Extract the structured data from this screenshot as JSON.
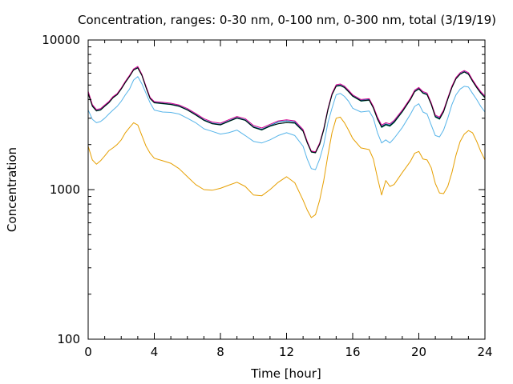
{
  "chart_data": {
    "type": "line",
    "title": "Concentration, ranges: 0-30 nm, 0-100 nm, 0-300 nm, total (3/19/19)",
    "xlabel": "Time [hour]",
    "ylabel": "Concentration",
    "xlim": [
      0,
      24
    ],
    "ylim": [
      100,
      10000
    ],
    "yscale": "log",
    "grid": false,
    "legend": "none",
    "xticks": [
      0,
      4,
      8,
      12,
      16,
      20,
      24
    ],
    "xtick_labels": [
      "0",
      "4",
      "8",
      "12",
      "16",
      "20",
      "24"
    ],
    "yticks": [
      100,
      1000,
      10000
    ],
    "ytick_labels": [
      "100",
      "1000",
      "10000"
    ],
    "x": [
      0,
      0.25,
      0.5,
      0.75,
      1,
      1.25,
      1.5,
      1.75,
      2,
      2.25,
      2.5,
      2.75,
      3,
      3.25,
      3.5,
      3.75,
      4,
      4.5,
      5,
      5.5,
      6,
      6.5,
      7,
      7.5,
      8,
      8.5,
      9,
      9.5,
      10,
      10.5,
      11,
      11.5,
      12,
      12.5,
      13,
      13.25,
      13.5,
      13.75,
      14,
      14.25,
      14.5,
      14.75,
      15,
      15.25,
      15.5,
      15.75,
      16,
      16.5,
      17,
      17.25,
      17.5,
      17.75,
      18,
      18.25,
      18.5,
      19,
      19.5,
      19.75,
      20,
      20.25,
      20.5,
      20.75,
      21,
      21.25,
      21.5,
      21.75,
      22,
      22.25,
      22.5,
      22.75,
      23,
      23.25,
      23.5,
      23.75,
      24
    ],
    "series": [
      {
        "color": "#e69f00",
        "values": [
          1950,
          1580,
          1480,
          1560,
          1680,
          1820,
          1900,
          2000,
          2150,
          2400,
          2600,
          2800,
          2700,
          2300,
          1950,
          1750,
          1620,
          1560,
          1500,
          1380,
          1220,
          1080,
          1000,
          990,
          1020,
          1070,
          1120,
          1050,
          920,
          910,
          1000,
          1120,
          1220,
          1110,
          850,
          730,
          650,
          680,
          850,
          1150,
          1700,
          2400,
          3000,
          3050,
          2800,
          2500,
          2200,
          1900,
          1850,
          1600,
          1200,
          920,
          1150,
          1050,
          1080,
          1300,
          1550,
          1750,
          1800,
          1600,
          1580,
          1400,
          1100,
          950,
          940,
          1050,
          1300,
          1700,
          2100,
          2350,
          2480,
          2400,
          2100,
          1800,
          1580
        ]
      },
      {
        "color": "#56b4e9",
        "values": [
          3400,
          2950,
          2800,
          2850,
          3000,
          3200,
          3400,
          3600,
          3900,
          4300,
          4700,
          5400,
          5700,
          5100,
          4400,
          3800,
          3400,
          3300,
          3280,
          3200,
          3000,
          2800,
          2550,
          2450,
          2350,
          2400,
          2500,
          2300,
          2100,
          2050,
          2150,
          2300,
          2400,
          2300,
          1950,
          1600,
          1380,
          1360,
          1600,
          2000,
          2800,
          3500,
          4300,
          4400,
          4200,
          3900,
          3500,
          3300,
          3350,
          3000,
          2400,
          2050,
          2150,
          2050,
          2200,
          2600,
          3200,
          3600,
          3750,
          3300,
          3200,
          2700,
          2300,
          2250,
          2500,
          3000,
          3700,
          4300,
          4700,
          4900,
          4850,
          4400,
          4000,
          3600,
          3300
        ]
      },
      {
        "color": "#009e73",
        "values": [
          4400,
          3600,
          3350,
          3400,
          3600,
          3800,
          4100,
          4300,
          4700,
          5200,
          5700,
          6300,
          6500,
          5800,
          4800,
          4050,
          3800,
          3750,
          3700,
          3600,
          3400,
          3150,
          2900,
          2750,
          2700,
          2850,
          3000,
          2900,
          2600,
          2500,
          2650,
          2750,
          2800,
          2780,
          2450,
          2050,
          1780,
          1760,
          2000,
          2500,
          3400,
          4300,
          4900,
          4950,
          4800,
          4500,
          4200,
          3900,
          3950,
          3500,
          2950,
          2600,
          2700,
          2650,
          2800,
          3300,
          4000,
          4500,
          4700,
          4400,
          4300,
          3700,
          3050,
          2950,
          3300,
          4000,
          4800,
          5500,
          5900,
          6100,
          5900,
          5300,
          4800,
          4400,
          4100
        ]
      },
      {
        "color": "#0072b2",
        "values": [
          4450,
          3650,
          3380,
          3430,
          3630,
          3830,
          4130,
          4330,
          4730,
          5230,
          5730,
          6330,
          6550,
          5830,
          4830,
          4080,
          3830,
          3780,
          3730,
          3630,
          3430,
          3180,
          2930,
          2780,
          2730,
          2880,
          3030,
          2930,
          2630,
          2530,
          2680,
          2830,
          2880,
          2830,
          2480,
          2070,
          1790,
          1770,
          2020,
          2530,
          3430,
          4330,
          4950,
          5000,
          4850,
          4550,
          4250,
          3950,
          4000,
          3550,
          3000,
          2650,
          2750,
          2700,
          2850,
          3350,
          4050,
          4550,
          4750,
          4450,
          4350,
          3750,
          3100,
          3000,
          3350,
          4050,
          4850,
          5550,
          5950,
          6150,
          5950,
          5350,
          4850,
          4450,
          4150
        ]
      },
      {
        "color": "#d4008f",
        "values": [
          4550,
          3700,
          3430,
          3480,
          3680,
          3880,
          4180,
          4380,
          4780,
          5300,
          5800,
          6400,
          6650,
          5900,
          4900,
          4130,
          3880,
          3830,
          3780,
          3680,
          3480,
          3230,
          2980,
          2830,
          2780,
          2930,
          3080,
          2980,
          2680,
          2580,
          2730,
          2880,
          2930,
          2880,
          2520,
          2100,
          1810,
          1790,
          2050,
          2560,
          3480,
          4400,
          5020,
          5080,
          4920,
          4620,
          4300,
          4000,
          4050,
          3600,
          3050,
          2700,
          2800,
          2750,
          2900,
          3400,
          4100,
          4620,
          4820,
          4520,
          4420,
          3800,
          3150,
          3050,
          3400,
          4100,
          4920,
          5620,
          6050,
          6250,
          6050,
          5420,
          4920,
          4520,
          4220
        ]
      },
      {
        "color": "#000000",
        "values": [
          4400,
          3620,
          3360,
          3410,
          3610,
          3810,
          4110,
          4310,
          4710,
          5210,
          5710,
          6310,
          6520,
          5810,
          4810,
          4060,
          3810,
          3760,
          3710,
          3610,
          3410,
          3160,
          2910,
          2760,
          2710,
          2860,
          3010,
          2910,
          2610,
          2510,
          2660,
          2760,
          2810,
          2790,
          2460,
          2060,
          1785,
          1765,
          2010,
          2520,
          3420,
          4320,
          4920,
          4970,
          4820,
          4520,
          4220,
          3920,
          3970,
          3520,
          2970,
          2620,
          2720,
          2670,
          2820,
          3320,
          4020,
          4520,
          4720,
          4420,
          4320,
          3720,
          3070,
          2970,
          3320,
          4020,
          4820,
          5520,
          5920,
          6120,
          5920,
          5320,
          4820,
          4420,
          4120
        ]
      }
    ]
  }
}
